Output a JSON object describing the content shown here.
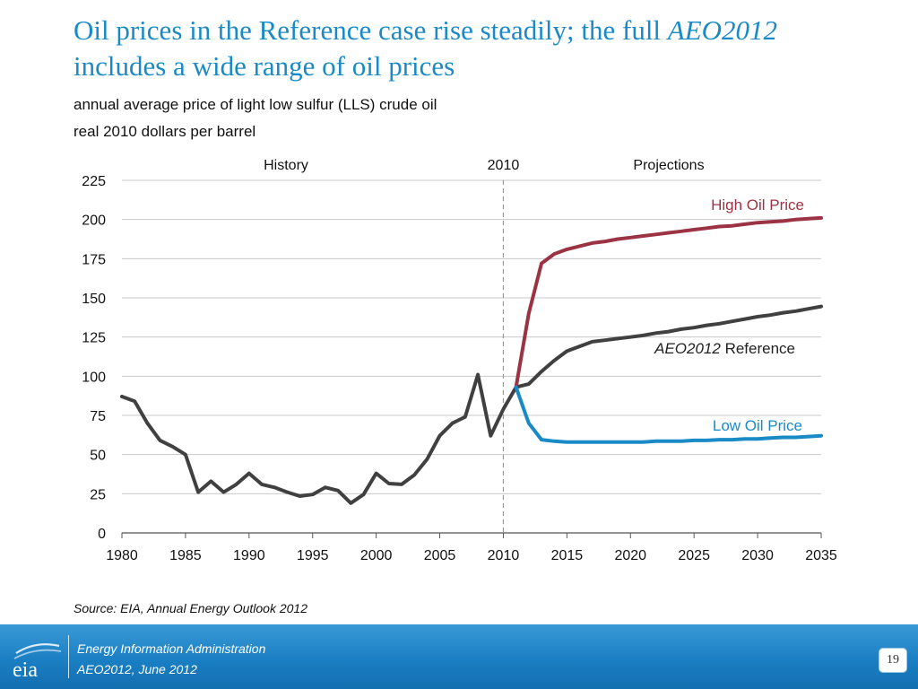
{
  "slide": {
    "title_part1": "Oil prices in the Reference case rise steadily; the full ",
    "title_em": "AEO2012",
    "title_part2": "includes a wide range of oil prices",
    "subtitle_line1": "annual average price of light low sulfur (LLS) crude oil",
    "subtitle_line2": "real 2010 dollars per barrel",
    "source": "Source:  EIA, Annual Energy Outlook 2012"
  },
  "footer": {
    "org_line1": "Energy Information Administration",
    "org_line2": "AEO2012, June 2012",
    "page_number": "19",
    "logo_text": "eia",
    "logo_color": "#ffffff"
  },
  "chart_data": {
    "type": "line",
    "title": "",
    "xlabel": "",
    "ylabel": "",
    "xlim": [
      1980,
      2035
    ],
    "ylim": [
      0,
      225
    ],
    "x_ticks": [
      1980,
      1985,
      1990,
      1995,
      2000,
      2005,
      2010,
      2015,
      2020,
      2025,
      2030,
      2035
    ],
    "y_ticks": [
      0,
      25,
      50,
      75,
      100,
      125,
      150,
      175,
      200,
      225
    ],
    "grid": "horizontal",
    "divider_year": 2010,
    "region_labels": {
      "history": "History",
      "divider": "2010",
      "projections": "Projections"
    },
    "series": [
      {
        "name": "History",
        "color": "#404040",
        "x": [
          1980,
          1981,
          1982,
          1983,
          1984,
          1985,
          1986,
          1987,
          1988,
          1989,
          1990,
          1991,
          1992,
          1993,
          1994,
          1995,
          1996,
          1997,
          1998,
          1999,
          2000,
          2001,
          2002,
          2003,
          2004,
          2005,
          2006,
          2007,
          2008,
          2009,
          2010,
          2011
        ],
        "y": [
          87,
          84,
          70,
          59,
          55,
          50,
          26,
          33,
          26,
          31,
          38,
          31,
          29,
          26,
          23.5,
          24.5,
          29,
          27,
          19,
          24.5,
          38,
          31.5,
          31,
          37,
          47,
          62,
          70,
          74,
          101,
          62,
          79,
          93
        ]
      },
      {
        "name_em": "AEO2012",
        "name": "Reference",
        "color": "#404040",
        "x": [
          2011,
          2012,
          2013,
          2014,
          2015,
          2016,
          2017,
          2018,
          2019,
          2020,
          2021,
          2022,
          2023,
          2024,
          2025,
          2026,
          2027,
          2028,
          2029,
          2030,
          2031,
          2032,
          2033,
          2034,
          2035
        ],
        "y": [
          93,
          95,
          103,
          110,
          116,
          119,
          122,
          123,
          124,
          125,
          126,
          127.5,
          128.5,
          130,
          131,
          132.5,
          133.5,
          135,
          136.5,
          138,
          139,
          140.5,
          141.5,
          143,
          144.5
        ]
      },
      {
        "name": "High Oil Price",
        "color": "#9b3344",
        "x": [
          2011,
          2012,
          2013,
          2014,
          2015,
          2016,
          2017,
          2018,
          2019,
          2020,
          2021,
          2022,
          2023,
          2024,
          2025,
          2026,
          2027,
          2028,
          2029,
          2030,
          2031,
          2032,
          2033,
          2034,
          2035
        ],
        "y": [
          93,
          140,
          172,
          178,
          181,
          183,
          185,
          186,
          187.5,
          188.5,
          189.5,
          190.5,
          191.5,
          192.5,
          193.5,
          194.5,
          195.5,
          196,
          197,
          198,
          198.5,
          199,
          200,
          200.5,
          201
        ]
      },
      {
        "name": "Low Oil Price",
        "color": "#1a8ac6",
        "x": [
          2011,
          2012,
          2013,
          2014,
          2015,
          2016,
          2017,
          2018,
          2019,
          2020,
          2021,
          2022,
          2023,
          2024,
          2025,
          2026,
          2027,
          2028,
          2029,
          2030,
          2031,
          2032,
          2033,
          2034,
          2035
        ],
        "y": [
          93,
          70,
          59.5,
          58.5,
          58,
          58,
          58,
          58,
          58,
          58,
          58,
          58.5,
          58.5,
          58.5,
          59,
          59,
          59.5,
          59.5,
          60,
          60,
          60.5,
          61,
          61,
          61.5,
          62
        ]
      }
    ]
  }
}
